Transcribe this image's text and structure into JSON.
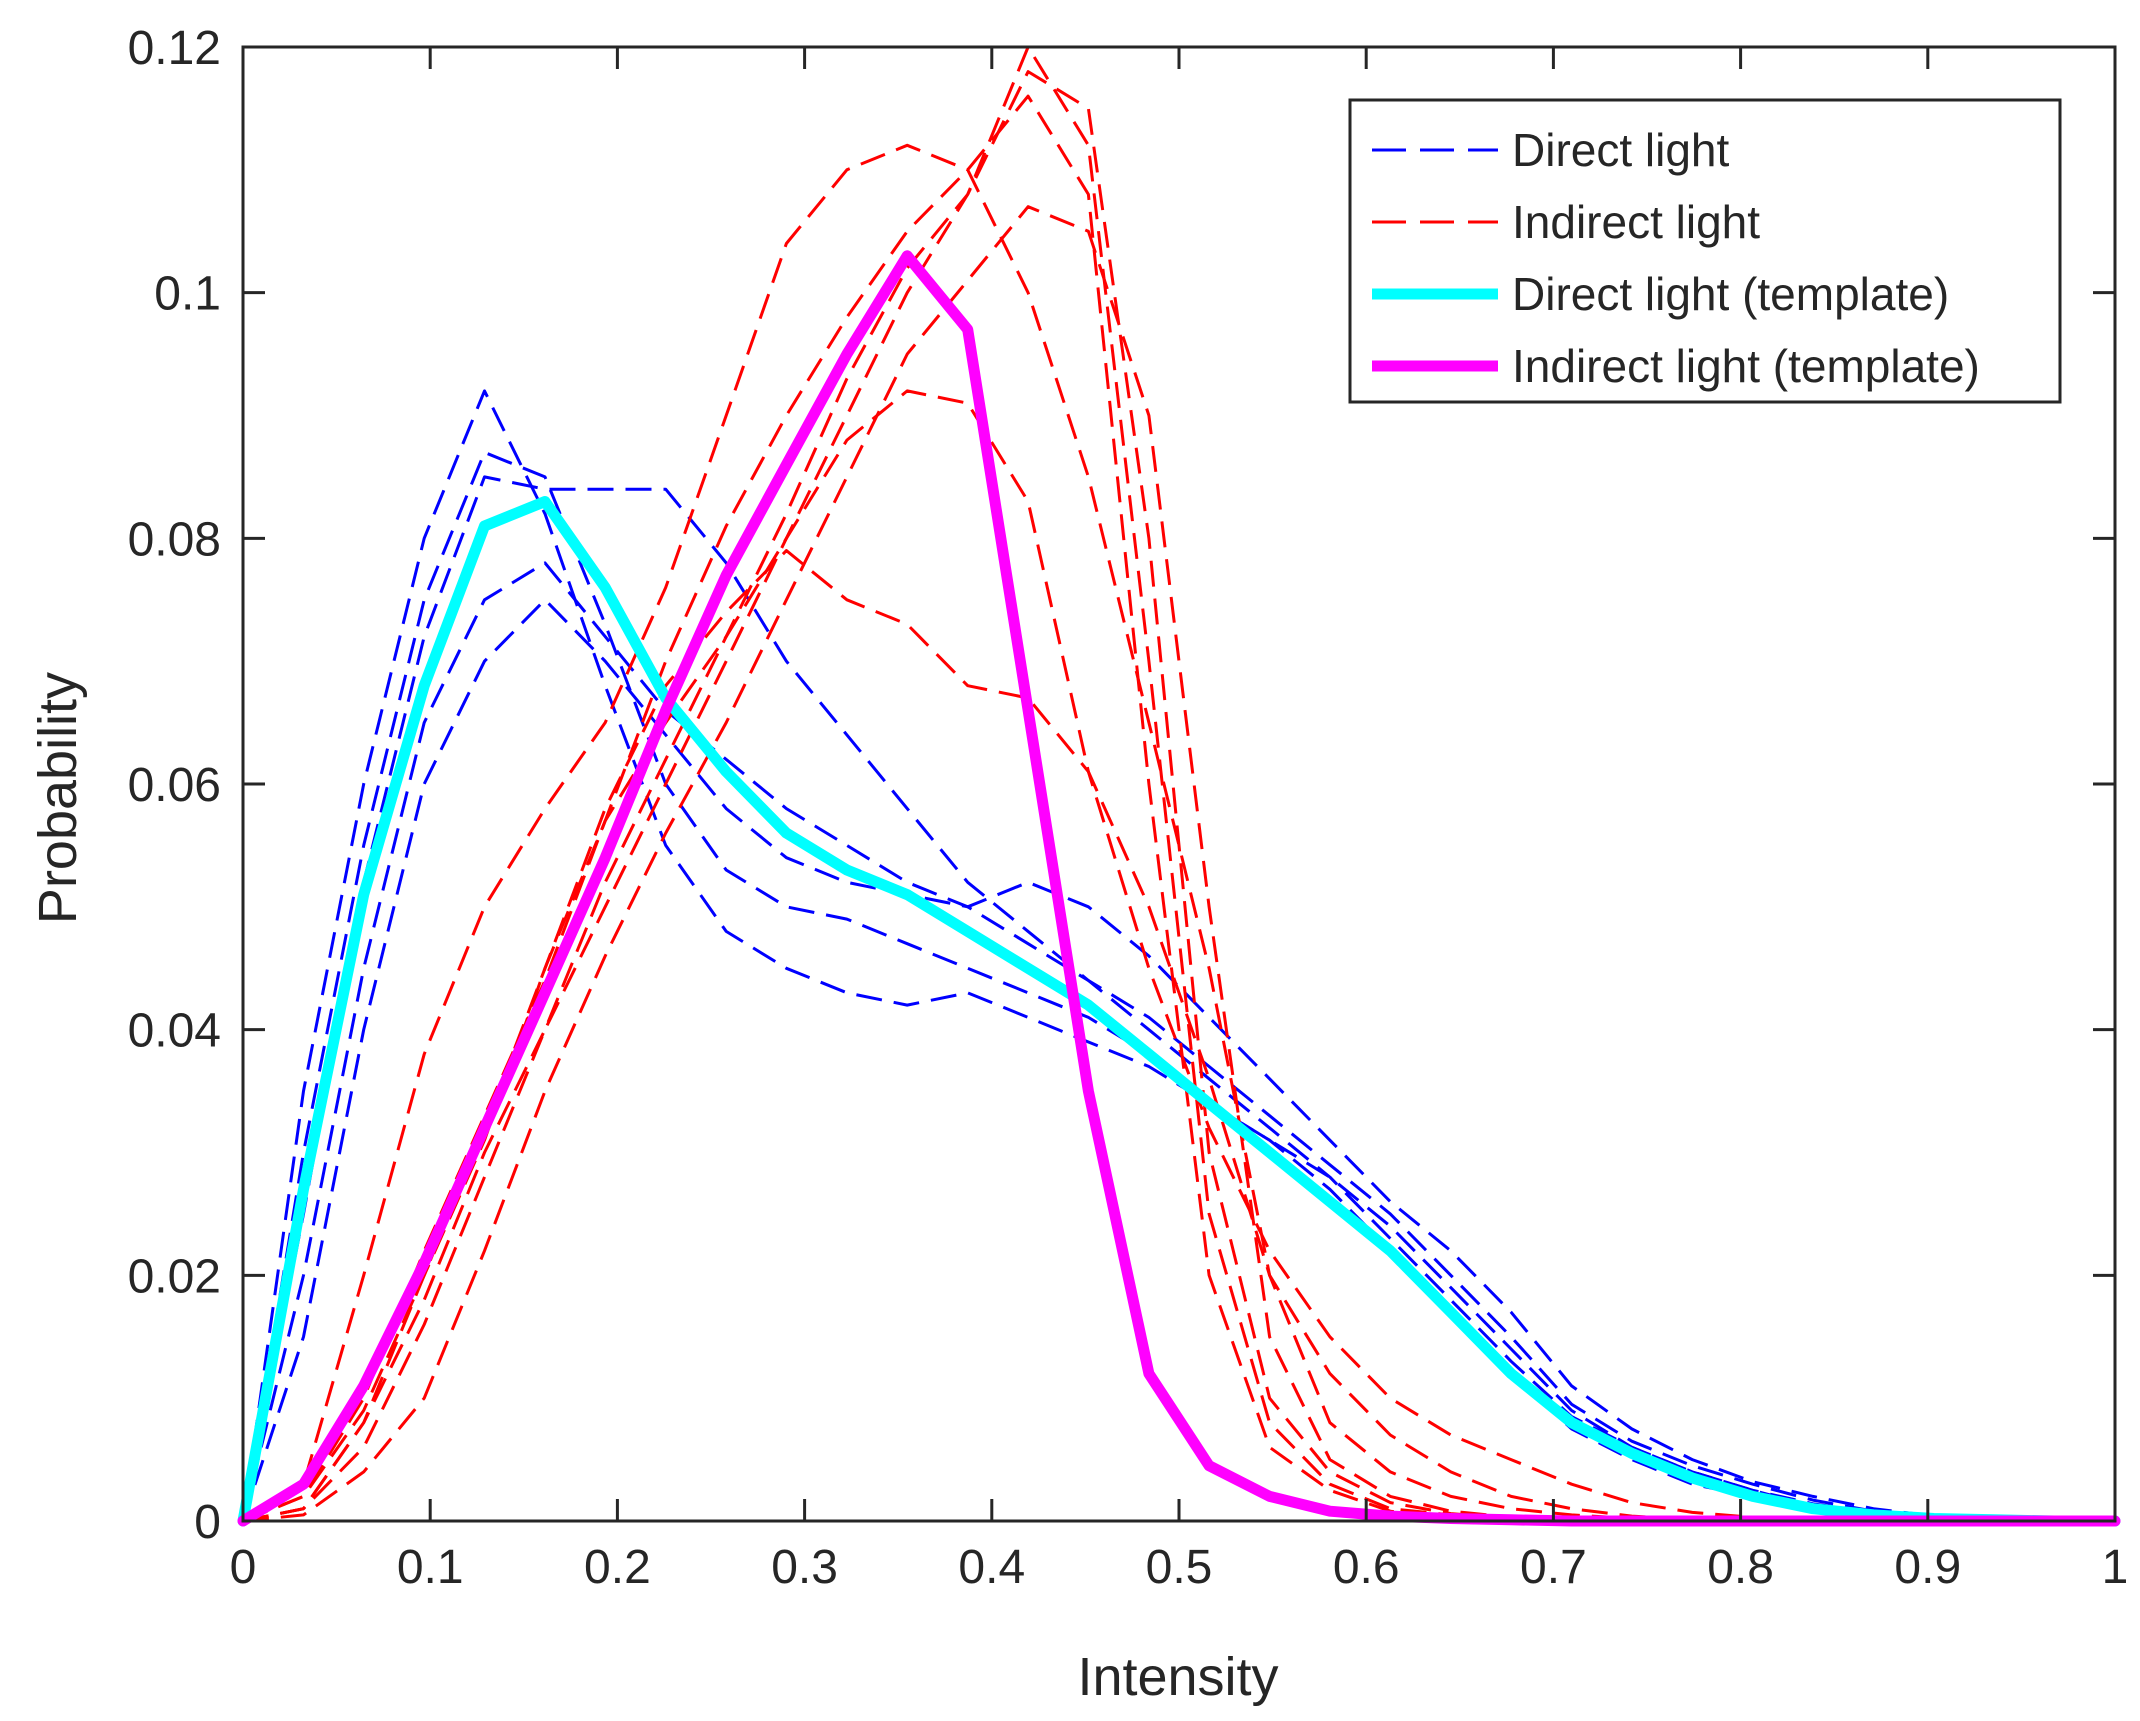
{
  "chart_data": {
    "type": "line",
    "title": "",
    "xlabel": "Intensity",
    "ylabel": "Probability",
    "xlim": [
      0,
      1
    ],
    "ylim": [
      0,
      0.12
    ],
    "grid": false,
    "legend_position": "top-right",
    "x_ticks": [
      0,
      0.1,
      0.2,
      0.3,
      0.4,
      0.5,
      0.6,
      0.7,
      0.8,
      0.9,
      1
    ],
    "x_tick_labels": [
      "0",
      "0.1",
      "0.2",
      "0.3",
      "0.4",
      "0.5",
      "0.6",
      "0.7",
      "0.8",
      "0.9",
      "1"
    ],
    "y_ticks": [
      0,
      0.02,
      0.04,
      0.06,
      0.08,
      0.1,
      0.12
    ],
    "y_tick_labels": [
      "0",
      "0.02",
      "0.04",
      "0.06",
      "0.08",
      "0.1",
      "0.12"
    ],
    "x": [
      0,
      0.0323,
      0.0645,
      0.0968,
      0.129,
      0.1613,
      0.1935,
      0.2258,
      0.2581,
      0.2903,
      0.3226,
      0.3548,
      0.3871,
      0.4194,
      0.4516,
      0.4839,
      0.5161,
      0.5484,
      0.5806,
      0.6129,
      0.6452,
      0.6774,
      0.7097,
      0.7419,
      0.7742,
      0.8065,
      0.8387,
      0.871,
      0.9032,
      0.9355,
      0.9677,
      1
    ],
    "legend": [
      {
        "label": "Direct light",
        "color": "#0000ff",
        "style": "dashed"
      },
      {
        "label": "Indirect light",
        "color": "#ff0000",
        "style": "dashed"
      },
      {
        "label": "Direct light (template)",
        "color": "#00ffff",
        "style": "solid"
      },
      {
        "label": "Indirect light (template)",
        "color": "#ff00ff",
        "style": "solid"
      }
    ],
    "series": [
      {
        "name": "Direct light (template)",
        "color": "#00ffff",
        "style": "solid",
        "values": [
          0,
          0.027,
          0.051,
          0.068,
          0.081,
          0.083,
          0.076,
          0.067,
          0.061,
          0.056,
          0.053,
          0.051,
          0.048,
          0.045,
          0.042,
          0.038,
          0.034,
          0.03,
          0.026,
          0.022,
          0.017,
          0.012,
          0.008,
          0.0055,
          0.0035,
          0.002,
          0.001,
          0.0005,
          0.0002,
          0.0001,
          0,
          0
        ]
      },
      {
        "name": "Indirect light (template)",
        "color": "#ff00ff",
        "style": "solid",
        "values": [
          0,
          0.003,
          0.011,
          0.021,
          0.032,
          0.043,
          0.054,
          0.066,
          0.077,
          0.086,
          0.095,
          0.103,
          0.097,
          0.066,
          0.035,
          0.012,
          0.0045,
          0.002,
          0.0008,
          0.0004,
          0.0002,
          0.0001,
          0,
          0,
          0,
          0,
          0,
          0,
          0,
          0,
          0,
          0
        ]
      },
      {
        "name": "Direct light",
        "color": "#0000ff",
        "style": "dashed",
        "values": [
          0,
          0.03,
          0.055,
          0.075,
          0.087,
          0.085,
          0.073,
          0.06,
          0.053,
          0.05,
          0.049,
          0.047,
          0.045,
          0.043,
          0.041,
          0.038,
          0.034,
          0.031,
          0.027,
          0.022,
          0.017,
          0.012,
          0.0075,
          0.005,
          0.003,
          0.002,
          0.001,
          0.0005,
          0.0002,
          0,
          0,
          0
        ]
      },
      {
        "name": "Direct light",
        "color": "#0000ff",
        "style": "dashed",
        "values": [
          0,
          0.035,
          0.06,
          0.08,
          0.092,
          0.082,
          0.068,
          0.055,
          0.048,
          0.045,
          0.043,
          0.042,
          0.043,
          0.041,
          0.039,
          0.037,
          0.034,
          0.031,
          0.028,
          0.024,
          0.019,
          0.014,
          0.009,
          0.006,
          0.004,
          0.0025,
          0.0012,
          0.0006,
          0.0002,
          0,
          0,
          0
        ]
      },
      {
        "name": "Direct light",
        "color": "#0000ff",
        "style": "dashed",
        "values": [
          0,
          0.02,
          0.045,
          0.065,
          0.075,
          0.078,
          0.072,
          0.066,
          0.062,
          0.058,
          0.055,
          0.052,
          0.05,
          0.047,
          0.044,
          0.041,
          0.037,
          0.033,
          0.029,
          0.025,
          0.02,
          0.015,
          0.0095,
          0.0065,
          0.0045,
          0.003,
          0.0017,
          0.0008,
          0.0003,
          0.0001,
          0,
          0
        ]
      },
      {
        "name": "Direct light",
        "color": "#0000ff",
        "style": "dashed",
        "values": [
          0,
          0.025,
          0.052,
          0.072,
          0.085,
          0.084,
          0.084,
          0.084,
          0.078,
          0.07,
          0.064,
          0.058,
          0.052,
          0.048,
          0.044,
          0.04,
          0.036,
          0.032,
          0.028,
          0.023,
          0.018,
          0.013,
          0.0085,
          0.006,
          0.004,
          0.0025,
          0.0014,
          0.0007,
          0.0002,
          0.0001,
          0,
          0
        ]
      },
      {
        "name": "Direct light",
        "color": "#0000ff",
        "style": "dashed",
        "values": [
          0,
          0.015,
          0.04,
          0.06,
          0.07,
          0.075,
          0.07,
          0.064,
          0.058,
          0.054,
          0.052,
          0.051,
          0.05,
          0.052,
          0.05,
          0.046,
          0.041,
          0.036,
          0.031,
          0.026,
          0.022,
          0.017,
          0.011,
          0.0075,
          0.005,
          0.0032,
          0.002,
          0.001,
          0.0004,
          0.0001,
          0,
          0
        ]
      },
      {
        "name": "Indirect light",
        "color": "#ff0000",
        "style": "dashed",
        "values": [
          0,
          0.001,
          0.008,
          0.018,
          0.03,
          0.04,
          0.052,
          0.062,
          0.072,
          0.082,
          0.093,
          0.102,
          0.108,
          0.12,
          0.112,
          0.07,
          0.025,
          0.008,
          0.003,
          0.001,
          0.0005,
          0.0002,
          0.0001,
          0,
          0,
          0,
          0,
          0,
          0,
          0,
          0,
          0
        ]
      },
      {
        "name": "Indirect light",
        "color": "#ff0000",
        "style": "dashed",
        "values": [
          0,
          0.002,
          0.01,
          0.022,
          0.033,
          0.044,
          0.057,
          0.07,
          0.081,
          0.09,
          0.098,
          0.105,
          0.11,
          0.116,
          0.108,
          0.06,
          0.02,
          0.006,
          0.0025,
          0.0008,
          0.0003,
          0.0001,
          0,
          0,
          0,
          0,
          0,
          0,
          0,
          0,
          0,
          0
        ]
      },
      {
        "name": "Indirect light",
        "color": "#ff0000",
        "style": "dashed",
        "values": [
          0,
          0.003,
          0.02,
          0.038,
          0.05,
          0.058,
          0.065,
          0.076,
          0.09,
          0.104,
          0.11,
          0.112,
          0.11,
          0.1,
          0.085,
          0.065,
          0.045,
          0.02,
          0.008,
          0.004,
          0.002,
          0.001,
          0.0005,
          0.0002,
          0,
          0,
          0,
          0,
          0,
          0,
          0,
          0
        ]
      },
      {
        "name": "Indirect light",
        "color": "#ff0000",
        "style": "dashed",
        "values": [
          0,
          0.001,
          0.008,
          0.02,
          0.032,
          0.045,
          0.058,
          0.068,
          0.074,
          0.079,
          0.075,
          0.073,
          0.068,
          0.067,
          0.061,
          0.045,
          0.032,
          0.022,
          0.015,
          0.01,
          0.007,
          0.005,
          0.003,
          0.0015,
          0.0007,
          0.0003,
          0.0001,
          0,
          0,
          0,
          0,
          0
        ]
      },
      {
        "name": "Indirect light",
        "color": "#ff0000",
        "style": "dashed",
        "values": [
          0,
          0.002,
          0.009,
          0.02,
          0.031,
          0.045,
          0.057,
          0.065,
          0.072,
          0.08,
          0.088,
          0.092,
          0.091,
          0.083,
          0.061,
          0.05,
          0.036,
          0.02,
          0.012,
          0.007,
          0.004,
          0.002,
          0.001,
          0.0004,
          0.0001,
          0,
          0,
          0,
          0,
          0,
          0,
          0
        ]
      },
      {
        "name": "Indirect light",
        "color": "#ff0000",
        "style": "dashed",
        "values": [
          0,
          0.001,
          0.006,
          0.016,
          0.028,
          0.04,
          0.05,
          0.06,
          0.07,
          0.08,
          0.09,
          0.1,
          0.108,
          0.118,
          0.115,
          0.08,
          0.03,
          0.01,
          0.004,
          0.0015,
          0.0006,
          0.0002,
          0,
          0,
          0,
          0,
          0,
          0,
          0,
          0,
          0,
          0
        ]
      },
      {
        "name": "Indirect light",
        "color": "#ff0000",
        "style": "dashed",
        "values": [
          0,
          0.0005,
          0.004,
          0.01,
          0.022,
          0.035,
          0.046,
          0.056,
          0.065,
          0.075,
          0.085,
          0.095,
          0.101,
          0.107,
          0.105,
          0.09,
          0.05,
          0.015,
          0.005,
          0.002,
          0.0008,
          0.0003,
          0.0001,
          0,
          0,
          0,
          0,
          0,
          0,
          0,
          0,
          0
        ]
      }
    ]
  }
}
